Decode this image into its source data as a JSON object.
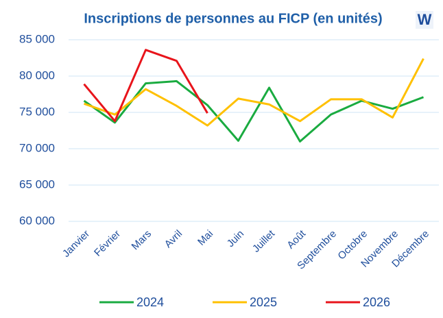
{
  "chart_data": {
    "type": "line",
    "title": "Inscriptions de personnes au FICP (en unités)",
    "logo": "W",
    "categories": [
      "Janvier",
      "Février",
      "Mars",
      "Avril",
      "Mai",
      "Juin",
      "Juillet",
      "Août",
      "Septembre",
      "Octobre",
      "Novembre",
      "Décembre"
    ],
    "series": [
      {
        "name": "2024",
        "color": "#1aab40",
        "values": [
          76600,
          73600,
          79000,
          79300,
          76000,
          71100,
          78400,
          71000,
          74700,
          76600,
          75500,
          77100
        ]
      },
      {
        "name": "2025",
        "color": "#ffc000",
        "values": [
          76200,
          74700,
          78200,
          75900,
          73200,
          76900,
          76100,
          73800,
          76800,
          76800,
          74300,
          82400
        ]
      },
      {
        "name": "2026",
        "color": "#e8141b",
        "values": [
          78900,
          73800,
          83600,
          82100,
          74900,
          null,
          null,
          null,
          null,
          null,
          null,
          null
        ]
      }
    ],
    "ylim": [
      60000,
      85000
    ],
    "yticks": [
      {
        "value": 60000,
        "label": "60 000"
      },
      {
        "value": 65000,
        "label": "65 000"
      },
      {
        "value": 70000,
        "label": "70 000"
      },
      {
        "value": 75000,
        "label": "75 000"
      },
      {
        "value": 80000,
        "label": "80 000"
      },
      {
        "value": 85000,
        "label": "85 000"
      }
    ],
    "grid": true,
    "legend": "bottom"
  }
}
